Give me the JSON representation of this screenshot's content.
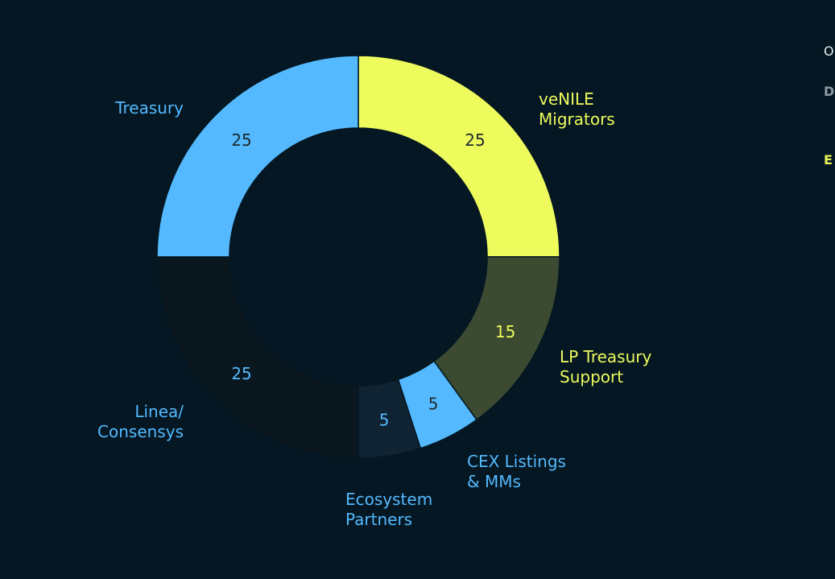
{
  "chart_data": {
    "type": "pie",
    "donut": true,
    "segments": [
      {
        "label": [
          "veNILE",
          "Migrators"
        ],
        "value": 25,
        "color": "#eefb5c",
        "label_color": "#eefb5c",
        "value_color": "#1c2a2e"
      },
      {
        "label": [
          "LP Treasury",
          "Support"
        ],
        "value": 15,
        "color": "#3b4a31",
        "label_color": "#eefb5c",
        "value_color": "#eefb5c"
      },
      {
        "label": [
          "CEX Listings",
          "& MMs"
        ],
        "value": 5,
        "color": "#54b9ff",
        "label_color": "#54b9ff",
        "value_color": "#1c2a2e"
      },
      {
        "label": [
          "Ecosystem",
          "Partners"
        ],
        "value": 5,
        "color": "#0f2333",
        "label_color": "#54b9ff",
        "value_color": "#54b9ff"
      },
      {
        "label": [
          "Linea/",
          "Consensys"
        ],
        "value": 25,
        "color": "#0a171f",
        "label_color": "#54b9ff",
        "value_color": "#54b9ff"
      },
      {
        "label": [
          "Treasury"
        ],
        "value": 25,
        "color": "#54b9ff",
        "label_color": "#54b9ff",
        "value_color": "#1c2a2e"
      }
    ]
  },
  "side_panel": {
    "line1": "O",
    "line2": "D",
    "line3": "E"
  },
  "colors": {
    "background": "#041722",
    "segment_border": "#041722"
  }
}
